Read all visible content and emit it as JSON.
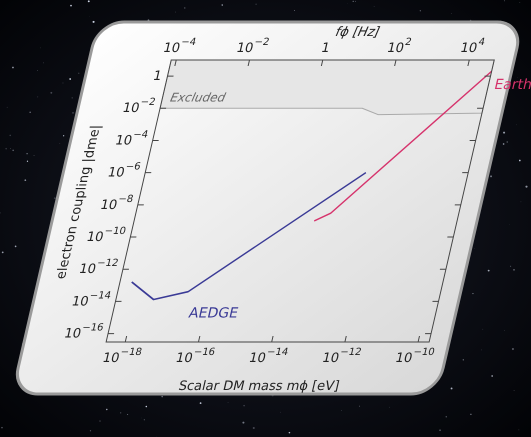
{
  "chart_data": {
    "type": "line",
    "x_label": "Scalar DM mass mϕ [eV]",
    "y_label": "electron coupling |dme|",
    "x2_label": "fϕ [Hz]",
    "log_x": true,
    "log_y": true,
    "xlim": [
      3e-19,
      2e-10
    ],
    "ylim": [
      3e-17,
      10
    ],
    "x2lim": [
      7.3e-05,
      48000.0
    ],
    "xticks": [
      {
        "value": 1e-18,
        "label": "10−18"
      },
      {
        "value": 1e-16,
        "label": "10−16"
      },
      {
        "value": 1e-14,
        "label": "10−14"
      },
      {
        "value": 1e-12,
        "label": "10−12"
      },
      {
        "value": 1e-10,
        "label": "10−10"
      }
    ],
    "x2ticks": [
      {
        "value": 0.0001,
        "label": "10−4"
      },
      {
        "value": 0.01,
        "label": "10−2"
      },
      1,
      {
        "value": 100,
        "label": "102"
      },
      {
        "value": 10000.0,
        "label": "104"
      }
    ],
    "yticks": [
      1,
      {
        "value": 0.01,
        "label": "10−2"
      },
      {
        "value": 0.0001,
        "label": "10−4"
      },
      {
        "value": 1e-06,
        "label": "10−6"
      },
      {
        "value": 1e-08,
        "label": "10−8"
      },
      {
        "value": 1e-10,
        "label": "10−10"
      },
      {
        "value": 1e-12,
        "label": "10−12"
      },
      {
        "value": 1e-14,
        "label": "10−14"
      },
      {
        "value": 1e-16,
        "label": "10−16"
      }
    ],
    "series": [
      {
        "name": "Excluded",
        "type": "area",
        "color": "#e6e6e6",
        "x": [
          3e-19,
          1e-13,
          3e-13,
          2e-10
        ],
        "values": [
          0.01,
          0.01,
          0.004,
          0.005
        ]
      },
      {
        "name": "AEDGE",
        "color": "#3a3a96",
        "x": [
          6.3e-19,
          3.2e-18,
          2.5e-17,
          3.2e-13
        ],
        "values": [
          1.6e-13,
          1.3e-14,
          4e-14,
          1e-06
        ]
      },
      {
        "name": "Earth-km",
        "color": "#d6336c",
        "x": [
          2.5e-14,
          6.3e-14,
          2e-10
        ],
        "values": [
          1e-09,
          3e-09,
          2
        ]
      }
    ]
  }
}
